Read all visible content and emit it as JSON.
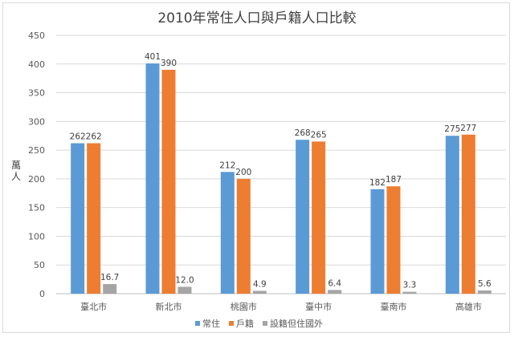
{
  "chart_data": {
    "type": "bar",
    "title": "2010年常住人口與戶籍人口比較",
    "ylabel": "萬人",
    "xlabel": "",
    "ylim": [
      0,
      450
    ],
    "yticks": [
      0,
      50,
      100,
      150,
      200,
      250,
      300,
      350,
      400,
      450
    ],
    "grid": true,
    "legend_position": "bottom",
    "categories": [
      "臺北市",
      "新北市",
      "桃園市",
      "臺中市",
      "臺南市",
      "高雄市"
    ],
    "series": [
      {
        "name": "常住",
        "color": "#5b9bd5",
        "values": [
          262,
          401,
          212,
          268,
          182,
          275
        ],
        "labels": [
          "262",
          "401",
          "212",
          "268",
          "182",
          "275"
        ]
      },
      {
        "name": "戶籍",
        "color": "#ed7d31",
        "values": [
          262,
          390,
          200,
          265,
          187,
          277
        ],
        "labels": [
          "262",
          "390",
          "200",
          "265",
          "187",
          "277"
        ]
      },
      {
        "name": "設籍但住國外",
        "color": "#a5a5a5",
        "values": [
          16.7,
          12.0,
          4.9,
          6.4,
          3.3,
          5.6
        ],
        "labels": [
          "16.7",
          "12.0",
          "4.9",
          "6.4",
          "3.3",
          "5.6"
        ]
      }
    ]
  }
}
